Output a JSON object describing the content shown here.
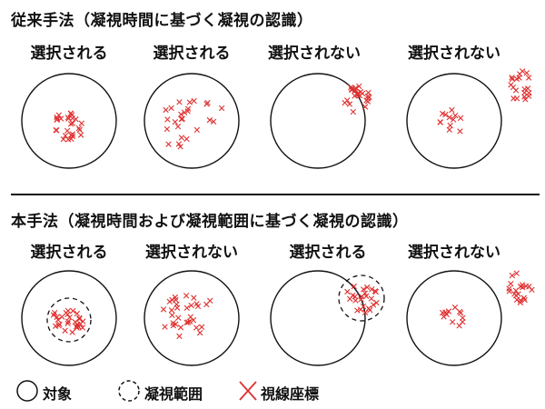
{
  "section_conventional": {
    "title": "従来手法（凝視時間に基づく凝視の認識）",
    "labels": [
      "選択される",
      "選択される",
      "選択されない",
      "選択されない"
    ]
  },
  "section_proposed": {
    "title": "本手法（凝視時間および凝視範囲に基づく凝視の認識）",
    "labels": [
      "選択される",
      "選択されない",
      "選択される",
      "選択されない"
    ]
  },
  "legend": {
    "object": "対象",
    "gaze_range": "凝視範囲",
    "gaze_coordinates": "視線座標"
  },
  "colors": {
    "gaze_mark": "#e03030",
    "line": "#111111"
  }
}
